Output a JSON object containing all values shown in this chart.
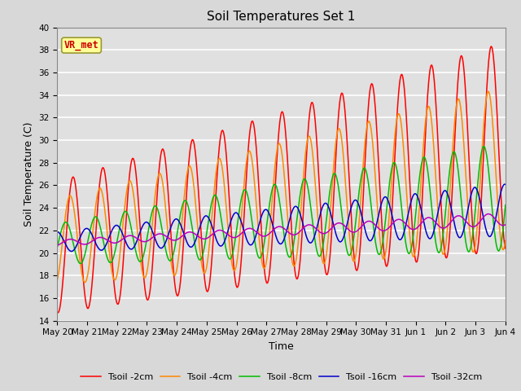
{
  "title": "Soil Temperatures Set 1",
  "xlabel": "Time",
  "ylabel": "Soil Temperature (C)",
  "ylim": [
    14,
    40
  ],
  "line_colors": [
    "#ff0000",
    "#ff8800",
    "#00bb00",
    "#0000cc",
    "#bb00bb"
  ],
  "line_labels": [
    "Tsoil -2cm",
    "Tsoil -4cm",
    "Tsoil -8cm",
    "Tsoil -16cm",
    "Tsoil -32cm"
  ],
  "annotation_text": "VR_met",
  "annotation_color": "#cc0000",
  "annotation_bg": "#ffff99",
  "fig_bg_color": "#d8d8d8",
  "plot_bg_color": "#e0e0e0",
  "grid_color": "#ffffff",
  "title_fontsize": 11,
  "label_fontsize": 9,
  "tick_fontsize": 7.5,
  "xtick_labels": [
    "May 20",
    "May 21",
    "May 22",
    "May 23",
    "May 24",
    "May 25",
    "May 26",
    "May 27",
    "May 28",
    "May 29",
    "May 30",
    "May 31",
    "Jun 1",
    "Jun 2",
    "Jun 3",
    "Jun 4"
  ]
}
